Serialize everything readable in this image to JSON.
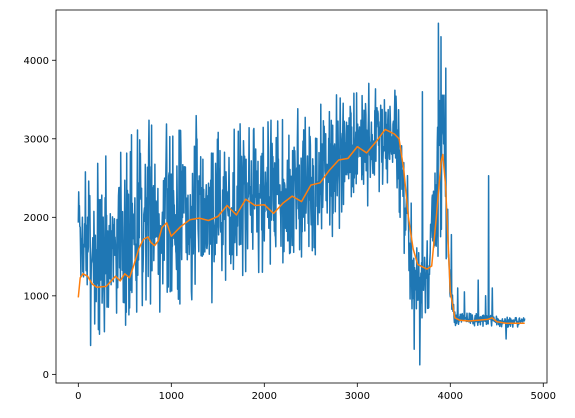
{
  "chart_data": {
    "type": "line",
    "title": "",
    "xlabel": "",
    "ylabel": "",
    "xlim": [
      -240,
      5040
    ],
    "ylim": [
      -110,
      4640
    ],
    "xticks": [
      0,
      1000,
      2000,
      3000,
      4000,
      5000
    ],
    "yticks": [
      0,
      1000,
      2000,
      3000,
      4000
    ],
    "grid": false,
    "legend": "none",
    "series": [
      {
        "color": "#1f77b4",
        "style": "raw-noisy",
        "x_range": [
          0,
          4800
        ],
        "noise_seed": 7,
        "envelope": [
          [
            0,
            1200,
            2400
          ],
          [
            100,
            500,
            2800
          ],
          [
            300,
            450,
            2900
          ],
          [
            500,
            600,
            3000
          ],
          [
            700,
            800,
            3200
          ],
          [
            1000,
            900,
            3200
          ],
          [
            1500,
            1000,
            3250
          ],
          [
            2000,
            1300,
            3250
          ],
          [
            2500,
            1500,
            3400
          ],
          [
            3000,
            1900,
            3700
          ],
          [
            3200,
            2300,
            3900
          ],
          [
            3400,
            2400,
            3700
          ],
          [
            3500,
            1600,
            3000
          ],
          [
            3550,
            700,
            2600
          ],
          [
            3650,
            600,
            1600
          ],
          [
            3750,
            800,
            1500
          ],
          [
            3820,
            800,
            3000
          ],
          [
            3880,
            1500,
            4300
          ],
          [
            3920,
            1800,
            4100
          ],
          [
            3960,
            1000,
            3000
          ],
          [
            4000,
            700,
            1500
          ],
          [
            4050,
            620,
            800
          ],
          [
            4800,
            600,
            720
          ]
        ],
        "spikes": [
          [
            3700,
            3600
          ],
          [
            3750,
            1700
          ],
          [
            3810,
            1700
          ],
          [
            3870,
            4470
          ],
          [
            3900,
            4300
          ],
          [
            3950,
            3900
          ],
          [
            4010,
            1780
          ],
          [
            4080,
            1100
          ],
          [
            4150,
            1050
          ],
          [
            4300,
            1200
          ],
          [
            4380,
            1000
          ],
          [
            4410,
            2530
          ],
          [
            4450,
            1100
          ],
          [
            4600,
            450
          ],
          [
            4700,
            720
          ],
          [
            3670,
            120
          ],
          [
            3610,
            320
          ]
        ]
      },
      {
        "color": "#ff7f0e",
        "style": "moving-average",
        "points": [
          [
            0,
            980
          ],
          [
            20,
            1230
          ],
          [
            50,
            1280
          ],
          [
            100,
            1250
          ],
          [
            150,
            1150
          ],
          [
            200,
            1110
          ],
          [
            300,
            1120
          ],
          [
            400,
            1250
          ],
          [
            450,
            1190
          ],
          [
            500,
            1280
          ],
          [
            550,
            1230
          ],
          [
            600,
            1400
          ],
          [
            650,
            1600
          ],
          [
            700,
            1720
          ],
          [
            750,
            1750
          ],
          [
            780,
            1680
          ],
          [
            820,
            1640
          ],
          [
            860,
            1700
          ],
          [
            900,
            1870
          ],
          [
            950,
            1930
          ],
          [
            1000,
            1760
          ],
          [
            1100,
            1880
          ],
          [
            1200,
            1970
          ],
          [
            1300,
            1990
          ],
          [
            1400,
            1960
          ],
          [
            1500,
            2010
          ],
          [
            1600,
            2150
          ],
          [
            1700,
            2030
          ],
          [
            1800,
            2230
          ],
          [
            1900,
            2150
          ],
          [
            2000,
            2160
          ],
          [
            2100,
            2050
          ],
          [
            2200,
            2180
          ],
          [
            2300,
            2270
          ],
          [
            2400,
            2200
          ],
          [
            2500,
            2410
          ],
          [
            2600,
            2440
          ],
          [
            2700,
            2600
          ],
          [
            2800,
            2730
          ],
          [
            2900,
            2750
          ],
          [
            3000,
            2900
          ],
          [
            3100,
            2820
          ],
          [
            3200,
            2960
          ],
          [
            3300,
            3120
          ],
          [
            3400,
            3060
          ],
          [
            3450,
            3000
          ],
          [
            3500,
            2600
          ],
          [
            3550,
            2000
          ],
          [
            3600,
            1600
          ],
          [
            3650,
            1400
          ],
          [
            3700,
            1370
          ],
          [
            3750,
            1340
          ],
          [
            3800,
            1380
          ],
          [
            3850,
            2000
          ],
          [
            3900,
            2700
          ],
          [
            3920,
            2800
          ],
          [
            3950,
            2400
          ],
          [
            4000,
            1050
          ],
          [
            4050,
            720
          ],
          [
            4100,
            690
          ],
          [
            4200,
            680
          ],
          [
            4300,
            690
          ],
          [
            4400,
            700
          ],
          [
            4450,
            720
          ],
          [
            4500,
            670
          ],
          [
            4600,
            650
          ],
          [
            4700,
            650
          ],
          [
            4800,
            650
          ]
        ]
      }
    ]
  }
}
